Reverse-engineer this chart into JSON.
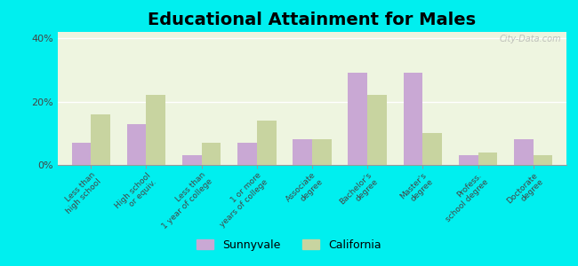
{
  "title": "Educational Attainment for Males",
  "categories": [
    "Less than\nhigh school",
    "High school\nor equiv.",
    "Less than\n1 year of college",
    "1 or more\nyears of college",
    "Associate\ndegree",
    "Bachelor's\ndegree",
    "Master's\ndegree",
    "Profess.\nschool degree",
    "Doctorate\ndegree"
  ],
  "sunnyvale": [
    7,
    13,
    3,
    7,
    8,
    29,
    29,
    3,
    8
  ],
  "california": [
    16,
    22,
    7,
    14,
    8,
    22,
    10,
    4,
    3
  ],
  "sunnyvale_color": "#c9a8d4",
  "california_color": "#c8d4a0",
  "ylim": [
    0,
    42
  ],
  "yticks": [
    0,
    20,
    40
  ],
  "ytick_labels": [
    "0%",
    "20%",
    "40%"
  ],
  "plot_bg_top": "#eef5e0",
  "plot_bg_bottom": "#d8eecc",
  "outer_background": "#00efef",
  "bar_width": 0.35,
  "title_fontsize": 14,
  "legend_labels": [
    "Sunnyvale",
    "California"
  ],
  "watermark": "City-Data.com"
}
